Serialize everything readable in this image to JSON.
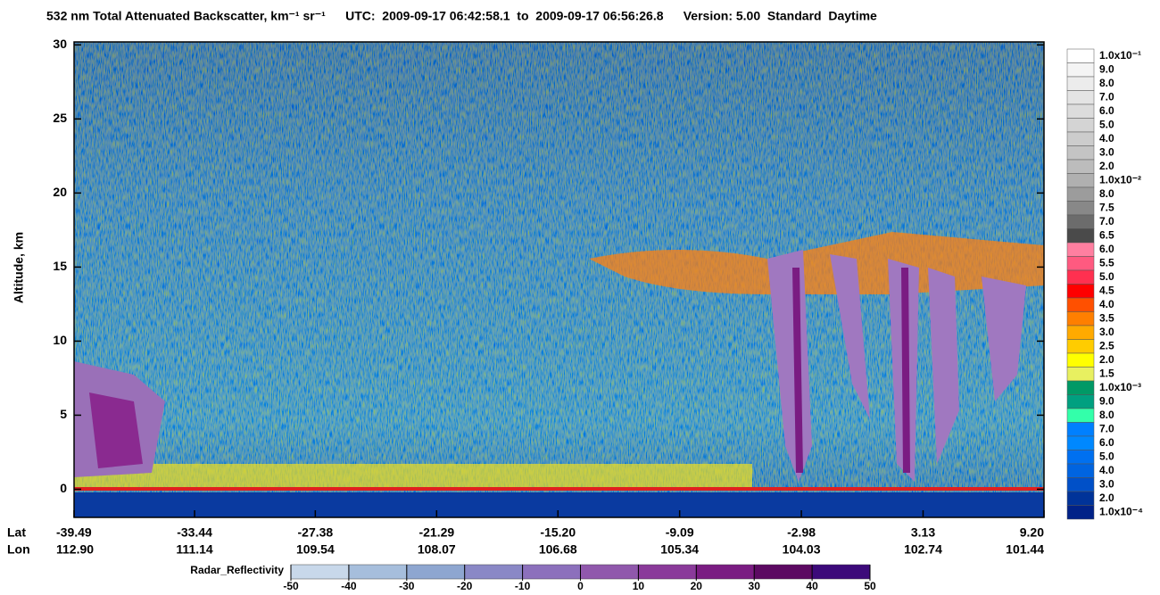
{
  "chart_data": {
    "type": "curtain",
    "title": "532 nm Total Attenuated Backscatter, km⁻¹ sr⁻¹",
    "utc": "UTC:  2009-09-17 06:42:58.1  to  2009-09-17 06:56:26.8",
    "version": "Version: 5.00  Standard  Daytime",
    "ylabel": "Altitude, km",
    "ylim": [
      -1.9,
      30.2
    ],
    "yticks": [
      0,
      5,
      10,
      15,
      20,
      25,
      30
    ],
    "x_row_labels": [
      "Lat",
      "Lon"
    ],
    "xlim": [
      -39.49,
      9.2
    ],
    "xticks": [
      {
        "value": -39.49,
        "label": "-39.49"
      },
      {
        "value": -33.44,
        "label": "-33.44"
      },
      {
        "value": -27.38,
        "label": "-27.38"
      },
      {
        "value": -21.29,
        "label": "-21.29"
      },
      {
        "value": -15.2,
        "label": "-15.20"
      },
      {
        "value": -9.09,
        "label": "-9.09"
      },
      {
        "value": -2.98,
        "label": "-2.98"
      },
      {
        "value": 3.13,
        "label": "3.13"
      },
      {
        "value": 9.2,
        "label": "9.20"
      }
    ],
    "xticks_lon": [
      "112.90",
      "111.14",
      "109.54",
      "108.07",
      "106.68",
      "105.34",
      "104.03",
      "102.74",
      "101.44"
    ],
    "colorbar": {
      "labels": [
        "1.0x10⁻¹",
        "9.0",
        "8.0",
        "7.0",
        "6.0",
        "5.0",
        "4.0",
        "3.0",
        "2.0",
        "1.0x10⁻²",
        "8.0",
        "7.5",
        "7.0",
        "6.5",
        "6.0",
        "5.5",
        "5.0",
        "4.5",
        "4.0",
        "3.5",
        "3.0",
        "2.5",
        "2.0",
        "1.5",
        "1.0x10⁻³",
        "9.0",
        "8.0",
        "7.0",
        "6.0",
        "5.0",
        "4.0",
        "3.0",
        "2.0",
        "1.0x10⁻⁴"
      ],
      "colors": [
        "#ffffff",
        "#f4f4f4",
        "#ececec",
        "#e4e4e4",
        "#dcdcdc",
        "#d4d4d4",
        "#cccccc",
        "#c4c4c4",
        "#bcbcbc",
        "#b0b0b0",
        "#9c9c9c",
        "#888888",
        "#6c6c6c",
        "#4a4a4a",
        "#ff7fa0",
        "#ff5a80",
        "#ff3050",
        "#ff0000",
        "#ff5000",
        "#ff7f00",
        "#ffaa00",
        "#ffcc00",
        "#ffff00",
        "#e8f060",
        "#009966",
        "#00a080",
        "#33ffaa",
        "#0080ff",
        "#0088ff",
        "#0070f0",
        "#0064e0",
        "#0050c8",
        "#003399",
        "#002288"
      ]
    },
    "radar_label": "Radar_Reflectivity",
    "radar_lim": [
      -50,
      50
    ],
    "radar_ticks": [
      -50,
      -40,
      -30,
      -20,
      -10,
      0,
      10,
      20,
      30,
      40,
      50
    ],
    "radar_colors": [
      "#c8d8ea",
      "#a6bedc",
      "#8ea6d0",
      "#8a88c6",
      "#8c70bc",
      "#9058ac",
      "#8a3a9a",
      "#7a1c82",
      "#5c0a62",
      "#3c0a7a"
    ]
  }
}
